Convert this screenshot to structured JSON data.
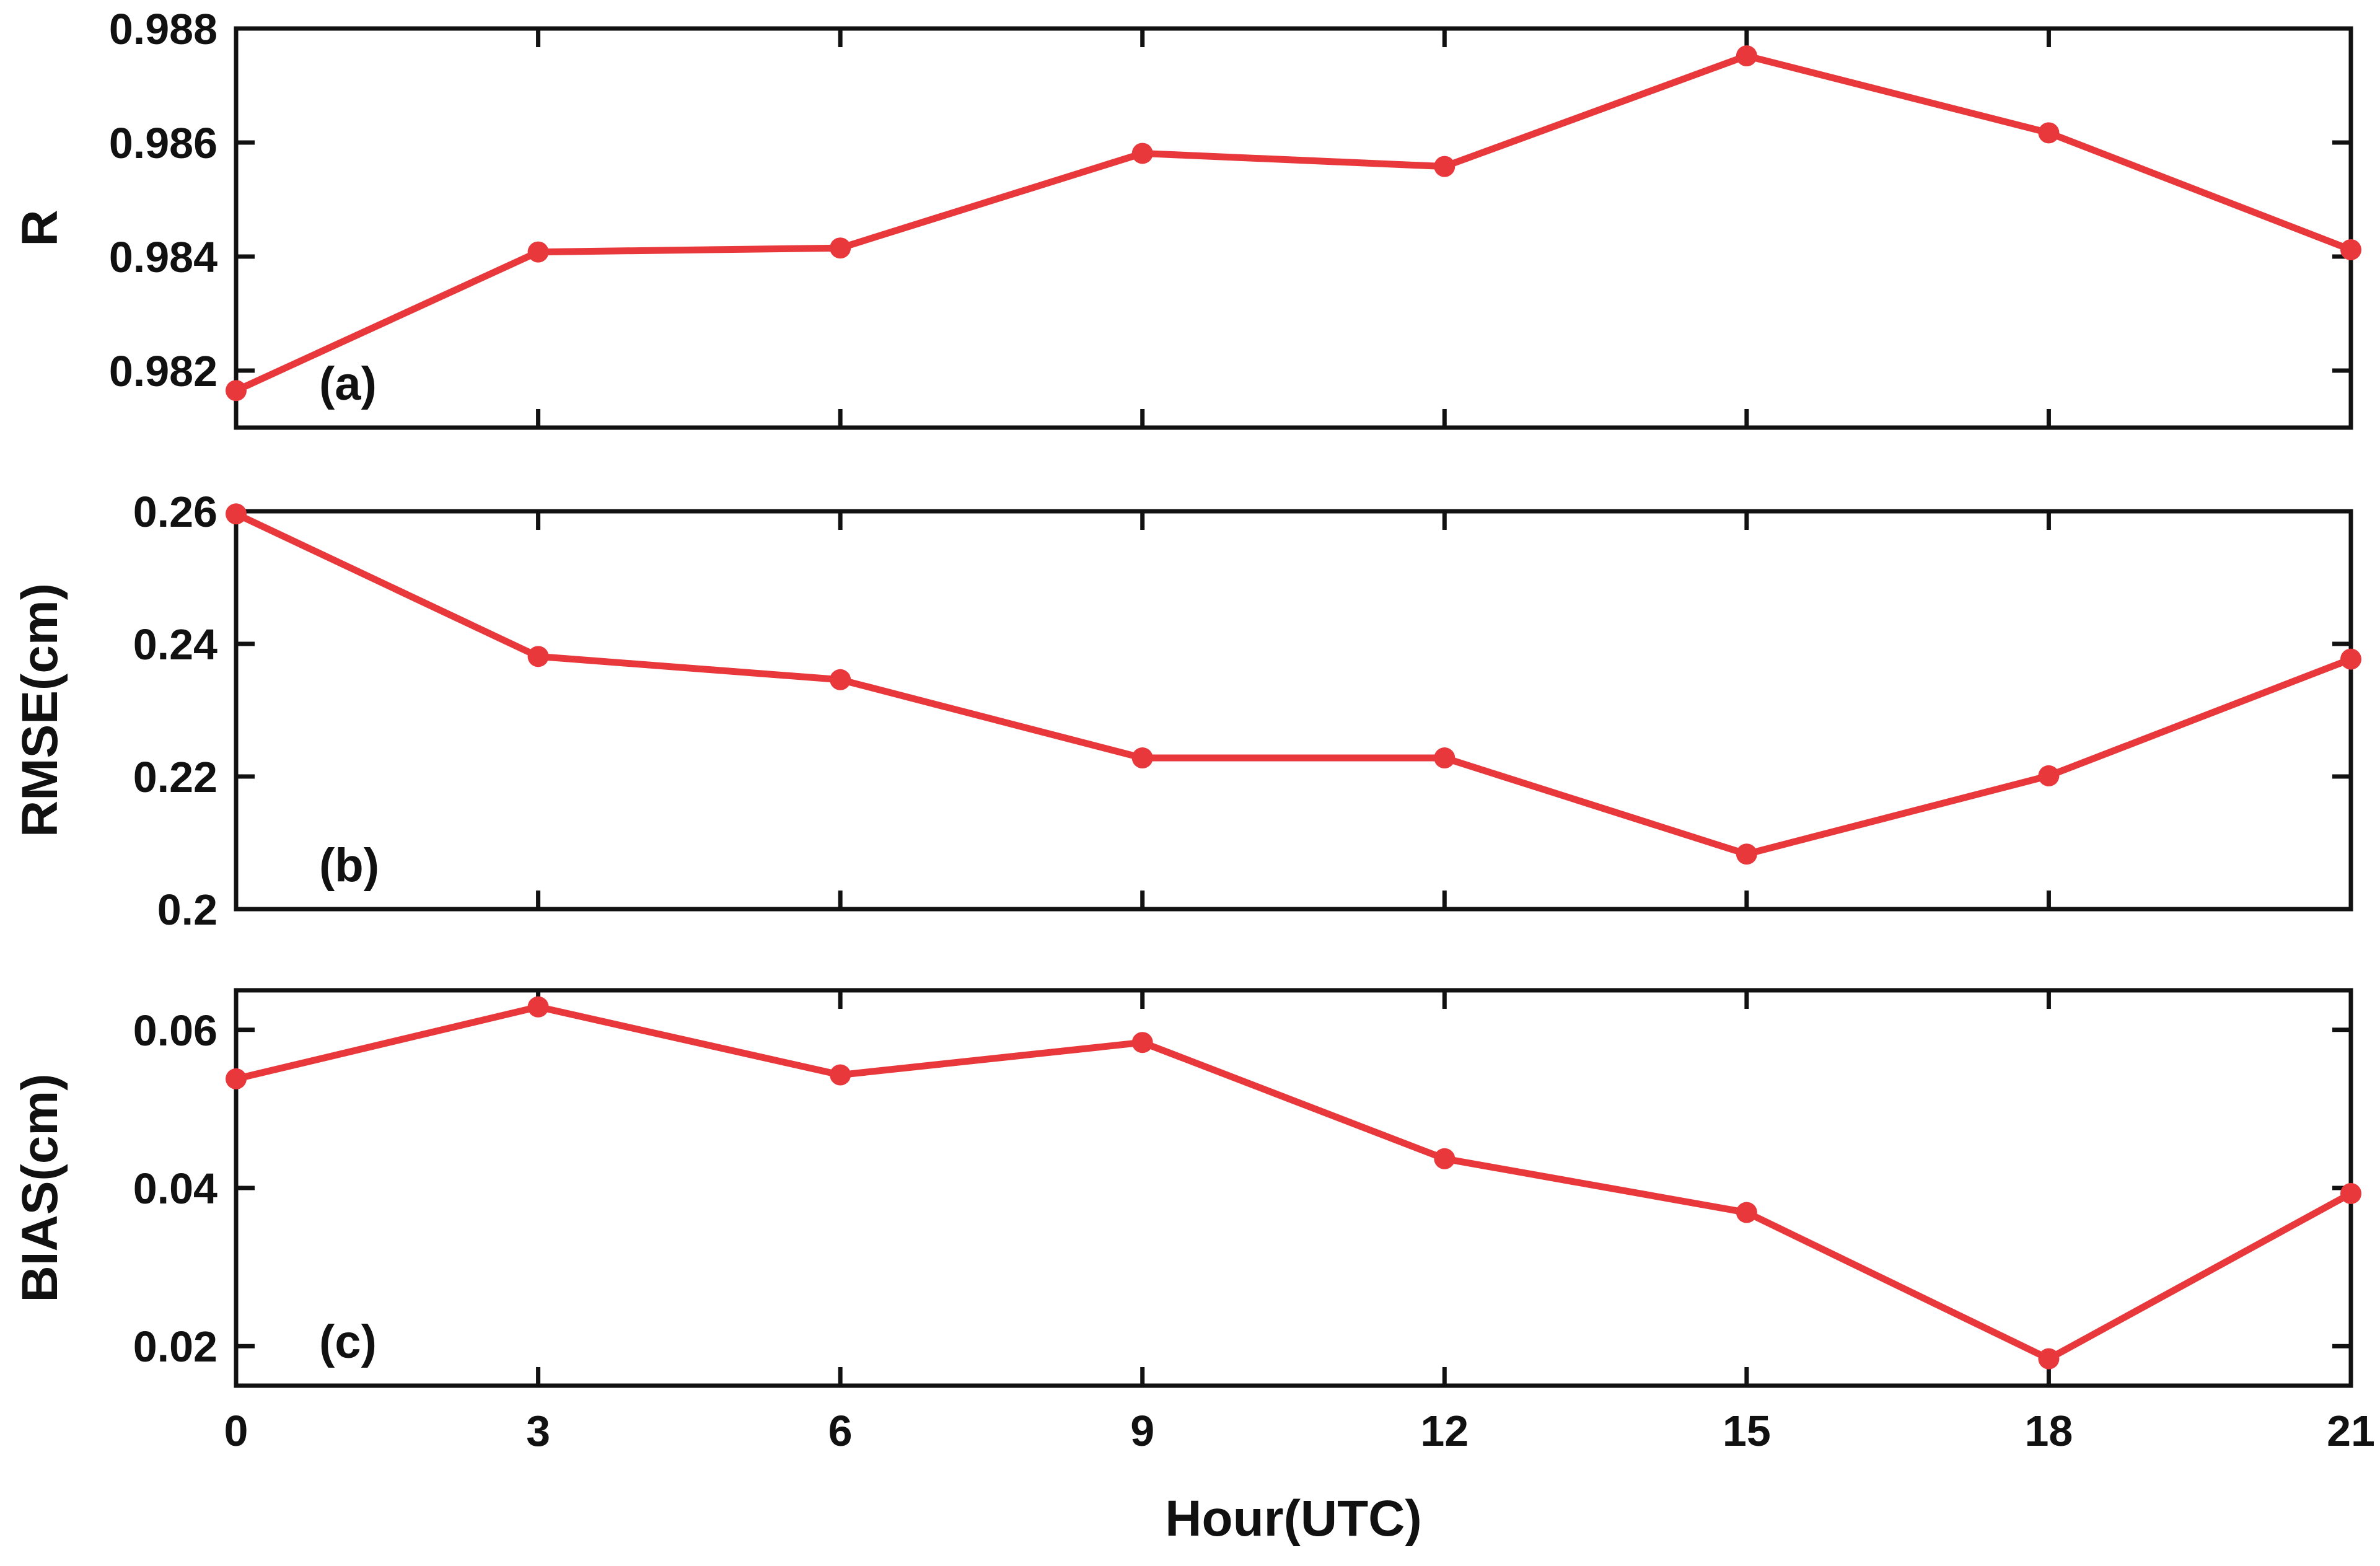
{
  "chart_data": [
    {
      "type": "line",
      "panel_label": "(a)",
      "ylabel": "R",
      "x": [
        0,
        3,
        6,
        9,
        12,
        15,
        18,
        21
      ],
      "xlim": [
        0,
        21
      ],
      "ylim": [
        0.981,
        0.988
      ],
      "yticks": [
        "0.982",
        "0.984",
        "0.986",
        "0.988"
      ],
      "ytick_values": [
        0.982,
        0.984,
        0.986,
        0.988
      ],
      "series": [
        {
          "values": [
            0.98165,
            0.98408,
            0.98415,
            0.98581,
            0.98558,
            0.98752,
            0.98617,
            0.98412
          ]
        }
      ]
    },
    {
      "type": "line",
      "panel_label": "(b)",
      "ylabel": "RMSE(cm)",
      "x": [
        0,
        3,
        6,
        9,
        12,
        15,
        18,
        21
      ],
      "xlim": [
        0,
        21
      ],
      "ylim": [
        0.2,
        0.26
      ],
      "yticks": [
        "0.2",
        "0.22",
        "0.24",
        "0.26"
      ],
      "ytick_values": [
        0.2,
        0.22,
        0.24,
        0.26
      ],
      "series": [
        {
          "values": [
            0.2596,
            0.2381,
            0.2346,
            0.2228,
            0.2228,
            0.2083,
            0.2201,
            0.2377
          ]
        }
      ]
    },
    {
      "type": "line",
      "panel_label": "(c)",
      "ylabel": "BIAS(cm)",
      "xlabel": "Hour(UTC)",
      "x": [
        0,
        3,
        6,
        9,
        12,
        15,
        18,
        21
      ],
      "xticks": [
        "0",
        "3",
        "6",
        "9",
        "12",
        "15",
        "18",
        "21"
      ],
      "xlim": [
        0,
        21
      ],
      "ylim": [
        0.015,
        0.065
      ],
      "yticks": [
        "0.02",
        "0.04",
        "0.06"
      ],
      "ytick_values": [
        0.02,
        0.04,
        0.06
      ],
      "series": [
        {
          "values": [
            0.0538,
            0.0629,
            0.0543,
            0.0584,
            0.0437,
            0.0369,
            0.0184,
            0.0393
          ]
        }
      ]
    }
  ],
  "colors": {
    "series": "#e8383b",
    "axes": "#111111"
  }
}
